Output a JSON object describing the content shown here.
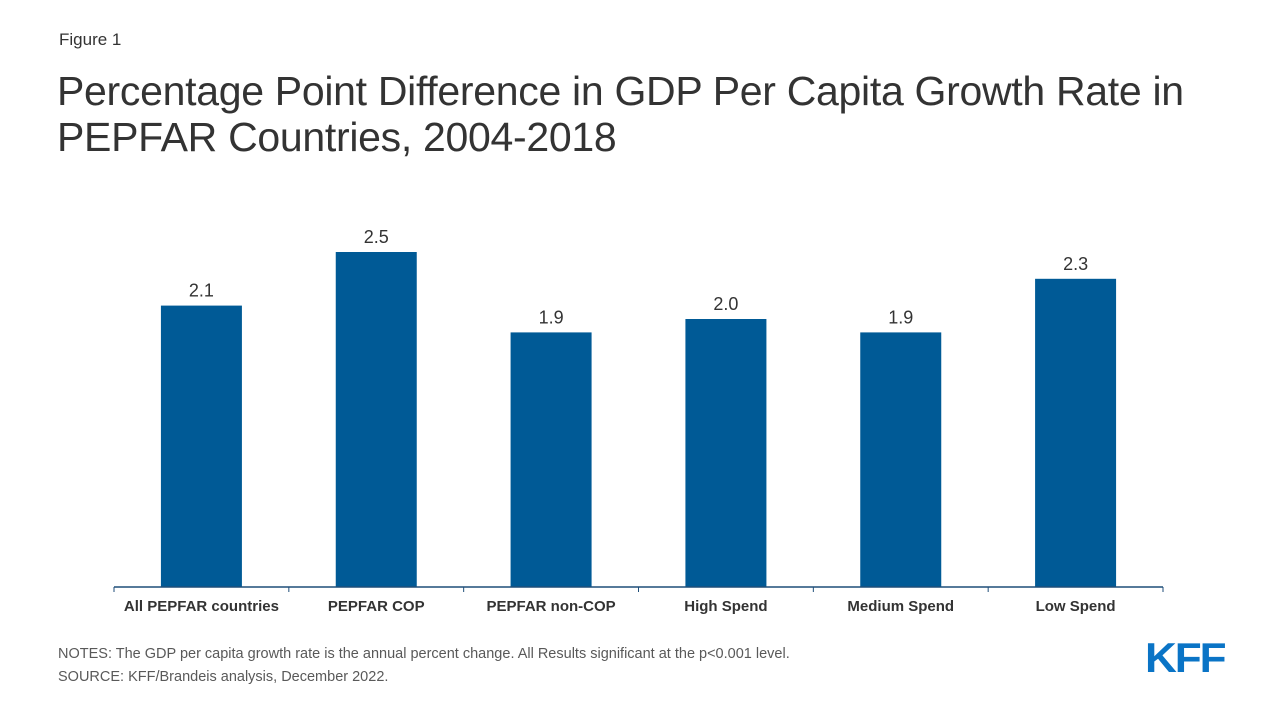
{
  "header": {
    "figure_label": "Figure 1",
    "title": "Percentage Point Difference in GDP Per Capita Growth Rate in PEPFAR Countries, 2004-2018"
  },
  "chart_data": {
    "type": "bar",
    "title": "Percentage Point Difference in GDP Per Capita Growth Rate in PEPFAR Countries, 2004-2018",
    "xlabel": "",
    "ylabel": "",
    "categories": [
      "All PEPFAR countries",
      "PEPFAR COP",
      "PEPFAR non-COP",
      "High Spend",
      "Medium Spend",
      "Low Spend"
    ],
    "values": [
      2.1,
      2.5,
      1.9,
      2.0,
      1.9,
      2.3
    ],
    "data_labels": [
      "2.1",
      "2.5",
      "1.9",
      "2.0",
      "1.9",
      "2.3"
    ],
    "ylim": [
      0,
      2.5
    ],
    "grid": false,
    "legend": "none",
    "bar_color": "#005a96",
    "axis_color": "#1f4e79"
  },
  "footer": {
    "notes": "NOTES: The GDP per capita growth rate is the annual percent change. All Results significant at the p<0.001 level.",
    "source": "SOURCE: KFF/Brandeis analysis,  December 2022."
  },
  "logo": {
    "text": "KFF",
    "color": "#0a74c6"
  }
}
